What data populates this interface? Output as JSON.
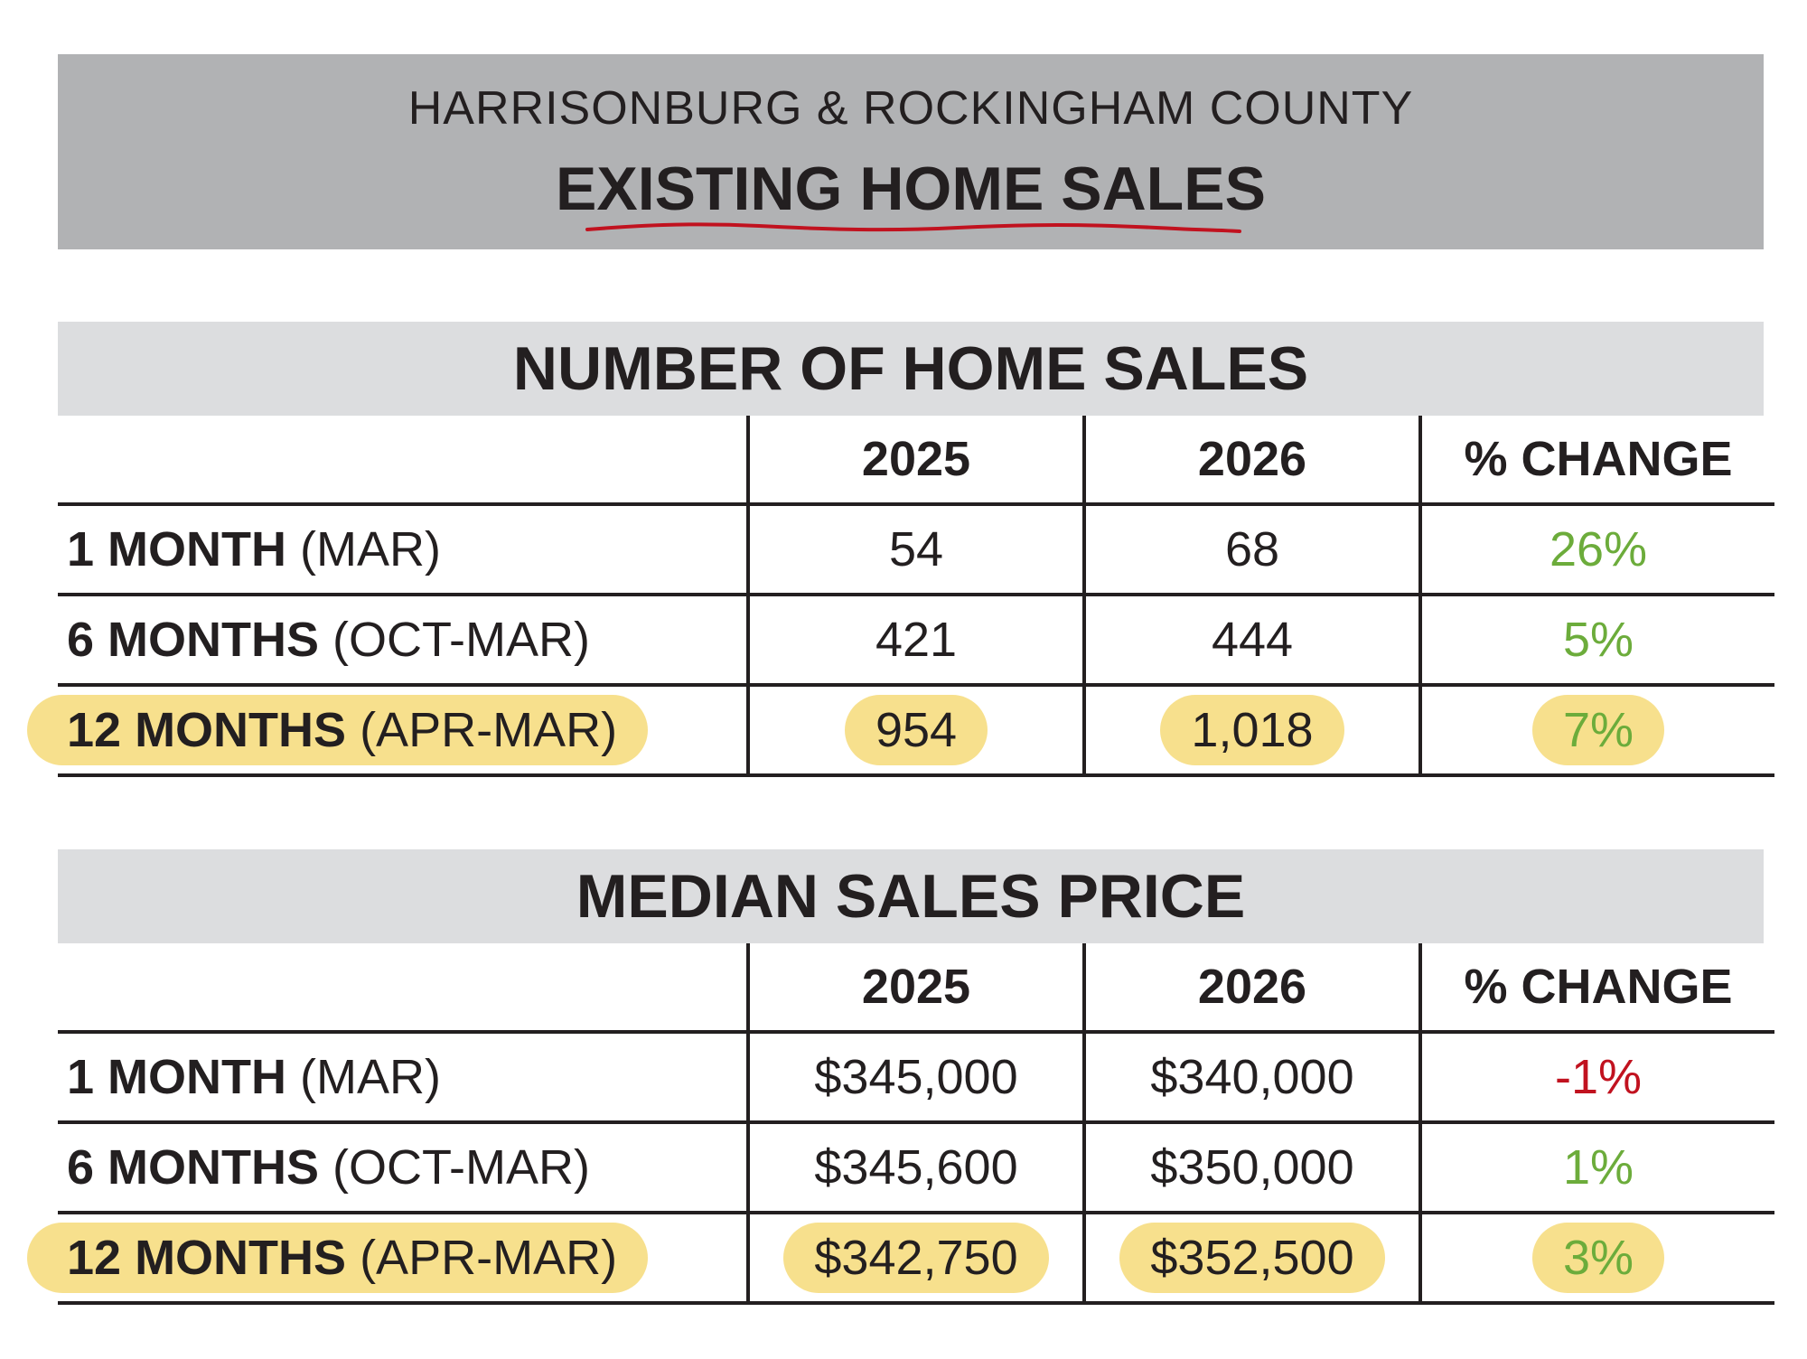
{
  "header": {
    "region": "HARRISONBURG & ROCKINGHAM COUNTY",
    "title": "EXISTING HOME SALES"
  },
  "columns": [
    "2025",
    "2026",
    "% CHANGE"
  ],
  "sales": {
    "title": "NUMBER OF HOME SALES",
    "rows": [
      {
        "period": "1 MONTH",
        "range": "(MAR)",
        "y2025": "54",
        "y2026": "68",
        "change": "26%"
      },
      {
        "period": "6 MONTHS",
        "range": "(OCT-MAR)",
        "y2025": "421",
        "y2026": "444",
        "change": "5%"
      },
      {
        "period": "12 MONTHS",
        "range": "(APR-MAR)",
        "y2025": "954",
        "y2026": "1,018",
        "change": "7%"
      }
    ]
  },
  "price": {
    "title": "MEDIAN SALES PRICE",
    "rows": [
      {
        "period": "1 MONTH",
        "range": "(MAR)",
        "y2025": "$345,000",
        "y2026": "$340,000",
        "change": "-1%"
      },
      {
        "period": "6 MONTHS",
        "range": "(OCT-MAR)",
        "y2025": "$345,600",
        "y2026": "$350,000",
        "change": "1%"
      },
      {
        "period": "12 MONTHS",
        "range": "(APR-MAR)",
        "y2025": "$342,750",
        "y2026": "$352,500",
        "change": "3%"
      }
    ]
  },
  "colors": {
    "positive": "#6cac3b",
    "negative": "#c1121f",
    "highlight": "#f7e08d",
    "header_bg": "#b1b2b4",
    "band_bg": "#dcdddf"
  }
}
